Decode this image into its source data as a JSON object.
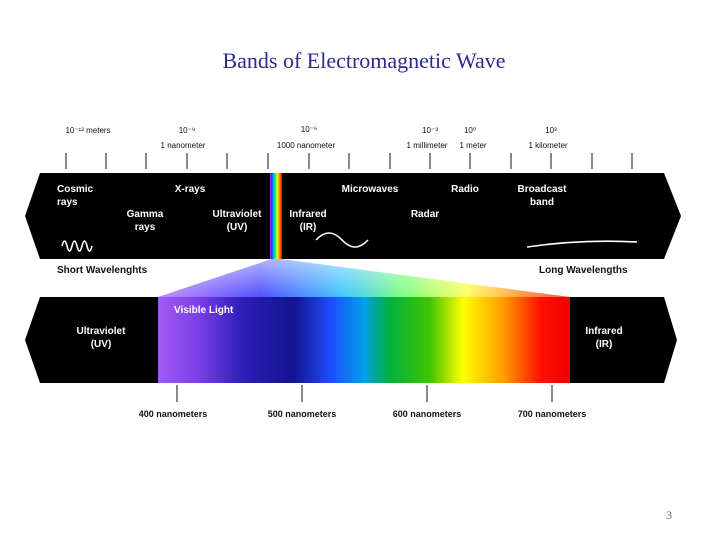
{
  "title": "Bands of Electromagnetic Wave",
  "page_number": "3",
  "top_scale": {
    "wavelength_ticks": [
      {
        "id": "1e-12",
        "text": "10⁻¹² meters"
      },
      {
        "id": "1e-9",
        "text": "10⁻⁹"
      },
      {
        "id": "1e-6",
        "text": "10⁻⁶"
      },
      {
        "id": "1e-3",
        "text": "10⁻³"
      },
      {
        "id": "1e0",
        "text": "10⁰"
      },
      {
        "id": "1e3",
        "text": "10³"
      }
    ],
    "unit_labels": [
      "1 nanometer",
      "1000 nanometer",
      "1 millimeter",
      "1 meter",
      "1 kilometer"
    ]
  },
  "spectrum_bands": [
    {
      "id": "cosmic",
      "label": "Cosmic\nrays"
    },
    {
      "id": "xrays",
      "label": "X-rays"
    },
    {
      "id": "gamma",
      "label": "Gamma\nrays"
    },
    {
      "id": "uv",
      "label": "Ultraviolet\n(UV)"
    },
    {
      "id": "ir",
      "label": "Infrared\n(IR)"
    },
    {
      "id": "microwaves",
      "label": "Microwaves"
    },
    {
      "id": "radio",
      "label": "Radio"
    },
    {
      "id": "radar",
      "label": "Radar"
    },
    {
      "id": "broadcast",
      "label": "Broadcast\nband"
    }
  ],
  "scale_ends": {
    "short": "Short Wavelenghts",
    "long": "Long Wavelengths"
  },
  "visible_panel": {
    "title": "Visible Light",
    "left_label": "Ultraviolet\n(UV)",
    "right_label": "Infrared\n(IR)",
    "nanometer_labels": [
      "400 nanometers",
      "500 nanometers",
      "600 nanometers",
      "700 nanometers"
    ]
  },
  "colors": {
    "title": "#2b2b8f",
    "band_background": "#000000",
    "spectrum": [
      "#8a3df0",
      "#5a2fe0",
      "#1a1aa8",
      "#0050ff",
      "#00a8ff",
      "#00c060",
      "#50d000",
      "#ffff00",
      "#ff8000",
      "#ff0000"
    ]
  }
}
